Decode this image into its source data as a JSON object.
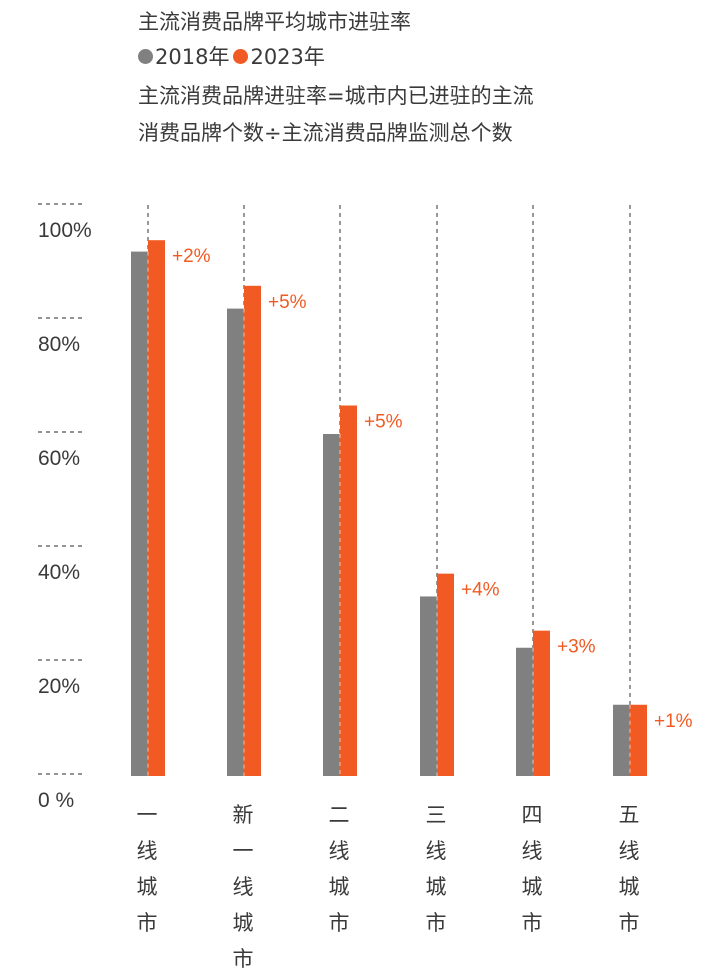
{
  "title": "主流消费品牌平均城市进驻率",
  "note_line1": "主流消费品牌进驻率=城市内已进驻的主流",
  "note_line2": "消费品牌个数÷主流消费品牌监测总个数",
  "colors": {
    "s2018": "#808080",
    "s2023": "#f15a22",
    "delta": "#f15a22"
  },
  "chart_data": {
    "type": "bar",
    "categories": [
      "一线城市",
      "新一线城市",
      "二线城市",
      "三线城市",
      "四线城市",
      "五线城市"
    ],
    "category_label_lines": [
      [
        "一",
        "线",
        "城",
        "市"
      ],
      [
        "新",
        "一",
        "线",
        "城",
        "市"
      ],
      [
        "二",
        "线",
        "城",
        "市"
      ],
      [
        "三",
        "线",
        "城",
        "市"
      ],
      [
        "四",
        "线",
        "城",
        "市"
      ],
      [
        "五",
        "线",
        "城",
        "市"
      ]
    ],
    "series": [
      {
        "name": "2018年",
        "values": [
          92,
          82,
          60,
          31.5,
          22.5,
          12.5
        ]
      },
      {
        "name": "2023年",
        "values": [
          94,
          86,
          65,
          35.5,
          25.5,
          12.5
        ]
      }
    ],
    "annotations": [
      "+2%",
      "+5%",
      "+5%",
      "+4%",
      "+3%",
      "+1%"
    ],
    "yticks": [
      0,
      20,
      40,
      60,
      80,
      100
    ],
    "ytick_labels": [
      "0 %",
      "20%",
      "40%",
      "60%",
      "80%",
      "100%"
    ],
    "ylim": [
      0,
      100
    ],
    "legend_position": "top-left",
    "grid": "dashed tick marks at left; dashed vertical guide per category"
  }
}
